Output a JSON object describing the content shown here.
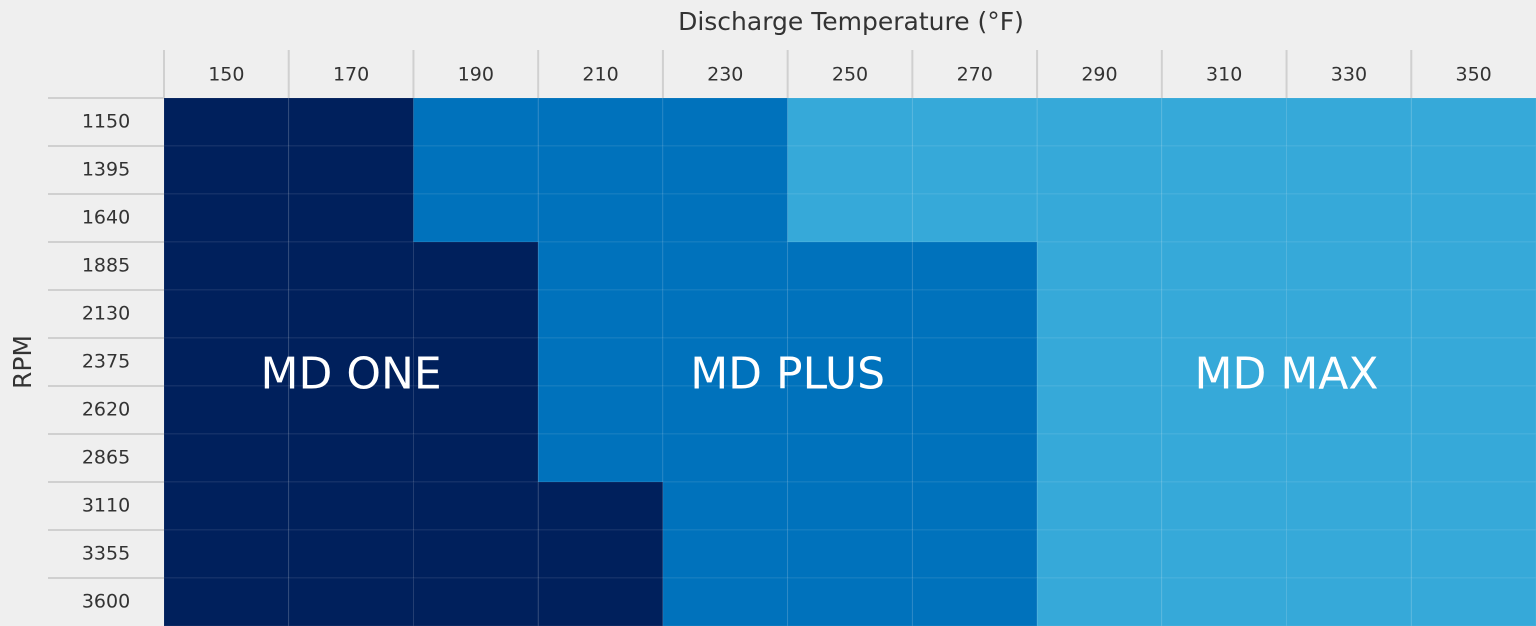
{
  "header": {
    "title": "Discharge Temperature (°F)"
  },
  "columns": [
    "150",
    "170",
    "190",
    "210",
    "230",
    "250",
    "270",
    "290",
    "310",
    "330",
    "350"
  ],
  "row_axis_label": "RPM",
  "rows": [
    "1150",
    "1395",
    "1640",
    "1885",
    "2130",
    "2375",
    "2620",
    "2865",
    "3110",
    "3355",
    "3600"
  ],
  "zones": [
    {
      "name": "MD ONE",
      "color": "#00205c"
    },
    {
      "name": "MD PLUS",
      "color": "#0072bc"
    },
    {
      "name": "MD MAX",
      "color": "#36a9d9"
    }
  ],
  "cells": [
    [
      0,
      0,
      1,
      1,
      1,
      2,
      2,
      2,
      2,
      2,
      2
    ],
    [
      0,
      0,
      1,
      1,
      1,
      2,
      2,
      2,
      2,
      2,
      2
    ],
    [
      0,
      0,
      1,
      1,
      1,
      2,
      2,
      2,
      2,
      2,
      2
    ],
    [
      0,
      0,
      0,
      1,
      1,
      1,
      1,
      2,
      2,
      2,
      2
    ],
    [
      0,
      0,
      0,
      1,
      1,
      1,
      1,
      2,
      2,
      2,
      2
    ],
    [
      0,
      0,
      0,
      1,
      1,
      1,
      1,
      2,
      2,
      2,
      2
    ],
    [
      0,
      0,
      0,
      1,
      1,
      1,
      1,
      2,
      2,
      2,
      2
    ],
    [
      0,
      0,
      0,
      1,
      1,
      1,
      1,
      2,
      2,
      2,
      2
    ],
    [
      0,
      0,
      0,
      0,
      1,
      1,
      1,
      2,
      2,
      2,
      2
    ],
    [
      0,
      0,
      0,
      0,
      1,
      1,
      1,
      2,
      2,
      2,
      2
    ],
    [
      0,
      0,
      0,
      0,
      1,
      1,
      1,
      2,
      2,
      2,
      2
    ]
  ]
}
